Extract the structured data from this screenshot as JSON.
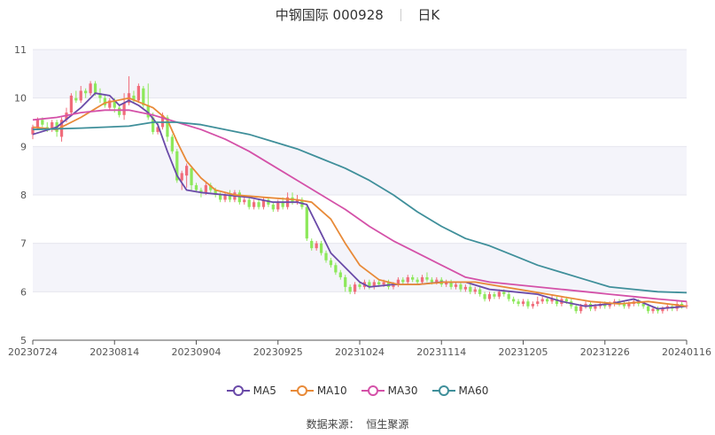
{
  "header": {
    "title_left": "中钢国际 000928",
    "title_right": "日K"
  },
  "source": {
    "label": "数据来源：",
    "value": "恒生聚源"
  },
  "chart_data": {
    "type": "candlestick",
    "x_tick_labels": [
      "20230724",
      "20230814",
      "20230904",
      "20230925",
      "20231024",
      "20231114",
      "20231205",
      "20231226",
      "20240116"
    ],
    "ylim": [
      5,
      11
    ],
    "y_ticks": [
      5,
      6,
      7,
      8,
      9,
      10,
      11
    ],
    "grid": "horizontal bands",
    "legend_position": "bottom",
    "colors": {
      "up": "#f06c7b",
      "down": "#8de85b",
      "band": "#f4f4fa"
    },
    "series": [
      {
        "name": "MA5",
        "color": "#6a4aa8",
        "points": [
          [
            0,
            9.25
          ],
          [
            5,
            9.4
          ],
          [
            10,
            9.8
          ],
          [
            13,
            10.1
          ],
          [
            16,
            10.05
          ],
          [
            18,
            9.85
          ],
          [
            20,
            9.95
          ],
          [
            22,
            9.85
          ],
          [
            24,
            9.7
          ],
          [
            26,
            9.45
          ],
          [
            28,
            8.9
          ],
          [
            30,
            8.4
          ],
          [
            32,
            8.1
          ],
          [
            35,
            8.05
          ],
          [
            40,
            8.0
          ],
          [
            45,
            7.95
          ],
          [
            50,
            7.85
          ],
          [
            55,
            7.85
          ],
          [
            57,
            7.8
          ],
          [
            60,
            7.2
          ],
          [
            62,
            6.8
          ],
          [
            65,
            6.5
          ],
          [
            68,
            6.2
          ],
          [
            70,
            6.1
          ],
          [
            75,
            6.15
          ],
          [
            80,
            6.15
          ],
          [
            85,
            6.2
          ],
          [
            90,
            6.2
          ],
          [
            95,
            6.05
          ],
          [
            100,
            6.0
          ],
          [
            105,
            5.95
          ],
          [
            110,
            5.8
          ],
          [
            115,
            5.7
          ],
          [
            120,
            5.75
          ],
          [
            125,
            5.85
          ],
          [
            130,
            5.65
          ],
          [
            136,
            5.7
          ]
        ]
      },
      {
        "name": "MA10",
        "color": "#e88a38",
        "points": [
          [
            0,
            9.4
          ],
          [
            5,
            9.35
          ],
          [
            10,
            9.6
          ],
          [
            15,
            9.9
          ],
          [
            20,
            10.0
          ],
          [
            25,
            9.8
          ],
          [
            28,
            9.55
          ],
          [
            30,
            9.1
          ],
          [
            32,
            8.7
          ],
          [
            35,
            8.35
          ],
          [
            38,
            8.1
          ],
          [
            42,
            8.0
          ],
          [
            48,
            7.95
          ],
          [
            55,
            7.9
          ],
          [
            58,
            7.85
          ],
          [
            62,
            7.5
          ],
          [
            65,
            7.0
          ],
          [
            68,
            6.55
          ],
          [
            72,
            6.25
          ],
          [
            76,
            6.15
          ],
          [
            80,
            6.15
          ],
          [
            86,
            6.2
          ],
          [
            92,
            6.2
          ],
          [
            98,
            6.1
          ],
          [
            104,
            6.0
          ],
          [
            110,
            5.9
          ],
          [
            116,
            5.8
          ],
          [
            122,
            5.75
          ],
          [
            128,
            5.8
          ],
          [
            136,
            5.7
          ]
        ]
      },
      {
        "name": "MA30",
        "color": "#d451a8",
        "points": [
          [
            0,
            9.55
          ],
          [
            5,
            9.6
          ],
          [
            10,
            9.7
          ],
          [
            15,
            9.75
          ],
          [
            20,
            9.75
          ],
          [
            25,
            9.65
          ],
          [
            30,
            9.5
          ],
          [
            35,
            9.35
          ],
          [
            40,
            9.15
          ],
          [
            45,
            8.9
          ],
          [
            50,
            8.6
          ],
          [
            55,
            8.3
          ],
          [
            60,
            8.0
          ],
          [
            65,
            7.7
          ],
          [
            70,
            7.35
          ],
          [
            75,
            7.05
          ],
          [
            80,
            6.8
          ],
          [
            85,
            6.55
          ],
          [
            90,
            6.3
          ],
          [
            95,
            6.2
          ],
          [
            100,
            6.15
          ],
          [
            105,
            6.1
          ],
          [
            110,
            6.05
          ],
          [
            115,
            6.0
          ],
          [
            120,
            5.95
          ],
          [
            125,
            5.9
          ],
          [
            130,
            5.85
          ],
          [
            136,
            5.8
          ]
        ]
      },
      {
        "name": "MA60",
        "color": "#3f8f9a",
        "points": [
          [
            0,
            9.35
          ],
          [
            10,
            9.38
          ],
          [
            20,
            9.42
          ],
          [
            25,
            9.5
          ],
          [
            30,
            9.5
          ],
          [
            35,
            9.45
          ],
          [
            40,
            9.35
          ],
          [
            45,
            9.25
          ],
          [
            50,
            9.1
          ],
          [
            55,
            8.95
          ],
          [
            60,
            8.75
          ],
          [
            65,
            8.55
          ],
          [
            70,
            8.3
          ],
          [
            75,
            8.0
          ],
          [
            80,
            7.65
          ],
          [
            85,
            7.35
          ],
          [
            90,
            7.1
          ],
          [
            95,
            6.95
          ],
          [
            100,
            6.75
          ],
          [
            105,
            6.55
          ],
          [
            110,
            6.4
          ],
          [
            115,
            6.25
          ],
          [
            120,
            6.1
          ],
          [
            125,
            6.05
          ],
          [
            130,
            6.0
          ],
          [
            136,
            5.98
          ]
        ]
      }
    ],
    "candles": [
      [
        0,
        9.25,
        9.4,
        9.45,
        9.15
      ],
      [
        1,
        9.4,
        9.55,
        9.6,
        9.35
      ],
      [
        2,
        9.55,
        9.45,
        9.6,
        9.4
      ],
      [
        3,
        9.4,
        9.35,
        9.5,
        9.3
      ],
      [
        4,
        9.35,
        9.5,
        9.55,
        9.3
      ],
      [
        5,
        9.5,
        9.3,
        9.55,
        9.2
      ],
      [
        6,
        9.2,
        9.55,
        9.6,
        9.1
      ],
      [
        7,
        9.55,
        9.7,
        9.8,
        9.5
      ],
      [
        8,
        9.7,
        10.05,
        10.1,
        9.65
      ],
      [
        9,
        10.0,
        9.95,
        10.15,
        9.9
      ],
      [
        10,
        9.95,
        10.15,
        10.25,
        9.9
      ],
      [
        11,
        10.15,
        10.1,
        10.2,
        10.0
      ],
      [
        12,
        10.1,
        10.3,
        10.35,
        10.05
      ],
      [
        13,
        10.3,
        10.1,
        10.35,
        10.05
      ],
      [
        14,
        10.1,
        10.0,
        10.2,
        9.9
      ],
      [
        15,
        10.0,
        9.85,
        10.05,
        9.8
      ],
      [
        16,
        9.8,
        9.95,
        10.0,
        9.75
      ],
      [
        17,
        9.95,
        9.8,
        10.0,
        9.7
      ],
      [
        18,
        9.8,
        9.65,
        9.85,
        9.6
      ],
      [
        19,
        9.65,
        9.9,
        10.1,
        9.55
      ],
      [
        20,
        9.9,
        10.1,
        10.45,
        9.85
      ],
      [
        21,
        10.05,
        9.95,
        10.15,
        9.9
      ],
      [
        22,
        9.95,
        10.25,
        10.3,
        9.9
      ],
      [
        23,
        10.2,
        9.85,
        10.25,
        9.8
      ],
      [
        24,
        9.85,
        9.6,
        10.3,
        9.55
      ],
      [
        25,
        9.6,
        9.3,
        9.7,
        9.25
      ],
      [
        26,
        9.3,
        9.4,
        9.5,
        9.25
      ],
      [
        27,
        9.4,
        9.65,
        9.7,
        9.35
      ],
      [
        28,
        9.6,
        9.2,
        9.65,
        9.1
      ],
      [
        29,
        9.2,
        8.9,
        9.25,
        8.85
      ],
      [
        30,
        8.9,
        8.3,
        8.95,
        8.25
      ],
      [
        31,
        8.3,
        8.45,
        8.5,
        8.1
      ],
      [
        32,
        8.4,
        8.6,
        8.65,
        8.15
      ],
      [
        33,
        8.55,
        8.2,
        8.6,
        8.1
      ],
      [
        34,
        8.2,
        8.1,
        8.25,
        8.05
      ],
      [
        35,
        8.1,
        8.05,
        8.15,
        7.95
      ],
      [
        36,
        8.05,
        8.2,
        8.25,
        8.0
      ],
      [
        37,
        8.2,
        8.1,
        8.25,
        8.05
      ],
      [
        38,
        8.1,
        8.0,
        8.15,
        7.95
      ],
      [
        39,
        8.0,
        7.9,
        8.05,
        7.85
      ],
      [
        40,
        7.9,
        8.0,
        8.05,
        7.85
      ],
      [
        41,
        8.0,
        7.9,
        8.1,
        7.85
      ],
      [
        42,
        7.9,
        8.05,
        8.1,
        7.85
      ],
      [
        43,
        8.05,
        7.85,
        8.1,
        7.8
      ],
      [
        44,
        7.85,
        7.9,
        7.95,
        7.8
      ],
      [
        45,
        7.9,
        7.75,
        7.95,
        7.7
      ],
      [
        46,
        7.75,
        7.85,
        7.9,
        7.7
      ],
      [
        47,
        7.85,
        7.75,
        7.9,
        7.7
      ],
      [
        48,
        7.75,
        7.9,
        7.95,
        7.7
      ],
      [
        49,
        7.9,
        7.8,
        7.95,
        7.75
      ],
      [
        50,
        7.8,
        7.7,
        7.85,
        7.65
      ],
      [
        51,
        7.7,
        7.85,
        7.9,
        7.65
      ],
      [
        52,
        7.85,
        7.75,
        7.95,
        7.7
      ],
      [
        53,
        7.75,
        7.95,
        8.05,
        7.7
      ],
      [
        54,
        7.95,
        7.85,
        8.05,
        7.8
      ],
      [
        55,
        7.85,
        7.9,
        8.0,
        7.8
      ],
      [
        56,
        7.9,
        7.75,
        7.95,
        7.7
      ],
      [
        57,
        7.75,
        7.1,
        7.8,
        7.05
      ],
      [
        58,
        7.05,
        6.9,
        7.1,
        6.85
      ],
      [
        59,
        6.9,
        7.0,
        7.05,
        6.85
      ],
      [
        60,
        7.0,
        6.8,
        7.05,
        6.75
      ],
      [
        61,
        6.8,
        6.65,
        6.85,
        6.6
      ],
      [
        62,
        6.65,
        6.55,
        6.7,
        6.5
      ],
      [
        63,
        6.55,
        6.4,
        6.6,
        6.35
      ],
      [
        64,
        6.4,
        6.3,
        6.45,
        6.25
      ],
      [
        65,
        6.3,
        6.1,
        6.35,
        6.0
      ],
      [
        66,
        6.1,
        6.0,
        6.15,
        5.95
      ],
      [
        67,
        6.0,
        6.15,
        6.2,
        5.95
      ],
      [
        68,
        6.15,
        6.1,
        6.2,
        6.05
      ],
      [
        69,
        6.1,
        6.2,
        6.25,
        6.05
      ],
      [
        70,
        6.2,
        6.1,
        6.25,
        6.05
      ],
      [
        71,
        6.1,
        6.2,
        6.25,
        6.05
      ],
      [
        72,
        6.2,
        6.15,
        6.25,
        6.1
      ],
      [
        73,
        6.15,
        6.2,
        6.25,
        6.1
      ],
      [
        74,
        6.2,
        6.1,
        6.25,
        6.05
      ],
      [
        75,
        6.1,
        6.15,
        6.2,
        6.05
      ],
      [
        76,
        6.15,
        6.25,
        6.3,
        6.1
      ],
      [
        77,
        6.25,
        6.2,
        6.3,
        6.15
      ],
      [
        78,
        6.2,
        6.3,
        6.35,
        6.15
      ],
      [
        79,
        6.3,
        6.25,
        6.35,
        6.2
      ],
      [
        80,
        6.25,
        6.2,
        6.3,
        6.15
      ],
      [
        81,
        6.2,
        6.3,
        6.35,
        6.15
      ],
      [
        82,
        6.3,
        6.25,
        6.4,
        6.2
      ],
      [
        83,
        6.25,
        6.2,
        6.3,
        6.15
      ],
      [
        84,
        6.2,
        6.25,
        6.3,
        6.15
      ],
      [
        85,
        6.25,
        6.15,
        6.3,
        6.1
      ],
      [
        86,
        6.15,
        6.2,
        6.25,
        6.1
      ],
      [
        87,
        6.2,
        6.1,
        6.25,
        6.05
      ],
      [
        88,
        6.1,
        6.15,
        6.2,
        6.05
      ],
      [
        89,
        6.15,
        6.05,
        6.2,
        6.0
      ],
      [
        90,
        6.05,
        6.1,
        6.15,
        6.0
      ],
      [
        91,
        6.1,
        6.0,
        6.15,
        5.95
      ],
      [
        92,
        6.0,
        6.05,
        6.1,
        5.95
      ],
      [
        93,
        6.05,
        5.95,
        6.1,
        5.9
      ],
      [
        94,
        5.95,
        5.85,
        6.0,
        5.8
      ],
      [
        95,
        5.85,
        5.95,
        6.0,
        5.8
      ],
      [
        96,
        5.95,
        5.9,
        6.0,
        5.85
      ],
      [
        97,
        5.9,
        6.0,
        6.05,
        5.85
      ],
      [
        98,
        6.0,
        5.95,
        6.05,
        5.9
      ],
      [
        99,
        5.95,
        5.85,
        6.0,
        5.8
      ],
      [
        100,
        5.85,
        5.8,
        5.9,
        5.75
      ],
      [
        101,
        5.8,
        5.75,
        5.85,
        5.7
      ],
      [
        102,
        5.75,
        5.8,
        5.85,
        5.7
      ],
      [
        103,
        5.8,
        5.7,
        5.85,
        5.65
      ],
      [
        104,
        5.7,
        5.75,
        5.8,
        5.65
      ],
      [
        105,
        5.75,
        5.8,
        5.9,
        5.7
      ],
      [
        106,
        5.8,
        5.85,
        5.9,
        5.75
      ],
      [
        107,
        5.85,
        5.8,
        5.9,
        5.75
      ],
      [
        108,
        5.8,
        5.85,
        5.95,
        5.75
      ],
      [
        109,
        5.85,
        5.75,
        5.9,
        5.7
      ],
      [
        110,
        5.75,
        5.85,
        5.9,
        5.7
      ],
      [
        111,
        5.85,
        5.8,
        5.9,
        5.75
      ],
      [
        112,
        5.8,
        5.7,
        5.85,
        5.65
      ],
      [
        113,
        5.7,
        5.6,
        5.75,
        5.55
      ],
      [
        114,
        5.6,
        5.7,
        5.75,
        5.55
      ],
      [
        115,
        5.7,
        5.75,
        5.8,
        5.65
      ],
      [
        116,
        5.75,
        5.65,
        5.8,
        5.6
      ],
      [
        117,
        5.65,
        5.7,
        5.75,
        5.6
      ],
      [
        118,
        5.7,
        5.75,
        5.8,
        5.65
      ],
      [
        119,
        5.75,
        5.7,
        5.8,
        5.65
      ],
      [
        120,
        5.7,
        5.75,
        5.8,
        5.65
      ],
      [
        121,
        5.75,
        5.8,
        5.85,
        5.7
      ],
      [
        122,
        5.8,
        5.75,
        5.85,
        5.7
      ],
      [
        123,
        5.75,
        5.7,
        5.8,
        5.65
      ],
      [
        124,
        5.7,
        5.75,
        5.8,
        5.65
      ],
      [
        125,
        5.75,
        5.8,
        5.85,
        5.7
      ],
      [
        126,
        5.8,
        5.75,
        5.85,
        5.7
      ],
      [
        127,
        5.75,
        5.7,
        5.8,
        5.65
      ],
      [
        128,
        5.7,
        5.6,
        5.75,
        5.55
      ],
      [
        129,
        5.6,
        5.65,
        5.7,
        5.55
      ],
      [
        130,
        5.65,
        5.6,
        5.7,
        5.55
      ],
      [
        131,
        5.6,
        5.65,
        5.7,
        5.55
      ],
      [
        132,
        5.65,
        5.7,
        5.75,
        5.6
      ],
      [
        133,
        5.7,
        5.65,
        5.75,
        5.6
      ],
      [
        134,
        5.65,
        5.75,
        5.8,
        5.6
      ],
      [
        135,
        5.75,
        5.7,
        5.8,
        5.65
      ],
      [
        136,
        5.7,
        5.72,
        5.8,
        5.65
      ]
    ]
  }
}
